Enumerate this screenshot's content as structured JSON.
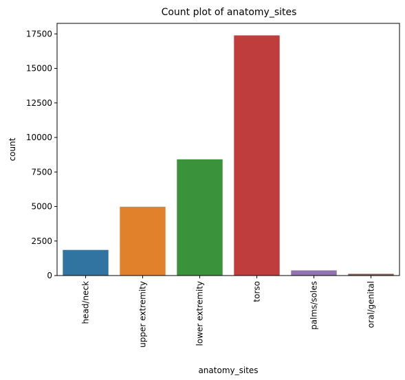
{
  "chart_data": {
    "type": "bar",
    "title": "Count plot of anatomy_sites",
    "xlabel": "anatomy_sites",
    "ylabel": "count",
    "categories": [
      "head/neck",
      "upper extremity",
      "lower extremity",
      "torso",
      "palms/soles",
      "oral/genital"
    ],
    "values": [
      1855,
      4983,
      8417,
      17392,
      375,
      124
    ],
    "colors": [
      "#3274a1",
      "#e1812c",
      "#3a923a",
      "#c03d3e",
      "#9372b2",
      "#845b53"
    ],
    "yticks": [
      0,
      2500,
      5000,
      7500,
      10000,
      12500,
      15000,
      17500
    ],
    "ylim": [
      0,
      18262
    ],
    "grid": false,
    "legend": "none"
  }
}
